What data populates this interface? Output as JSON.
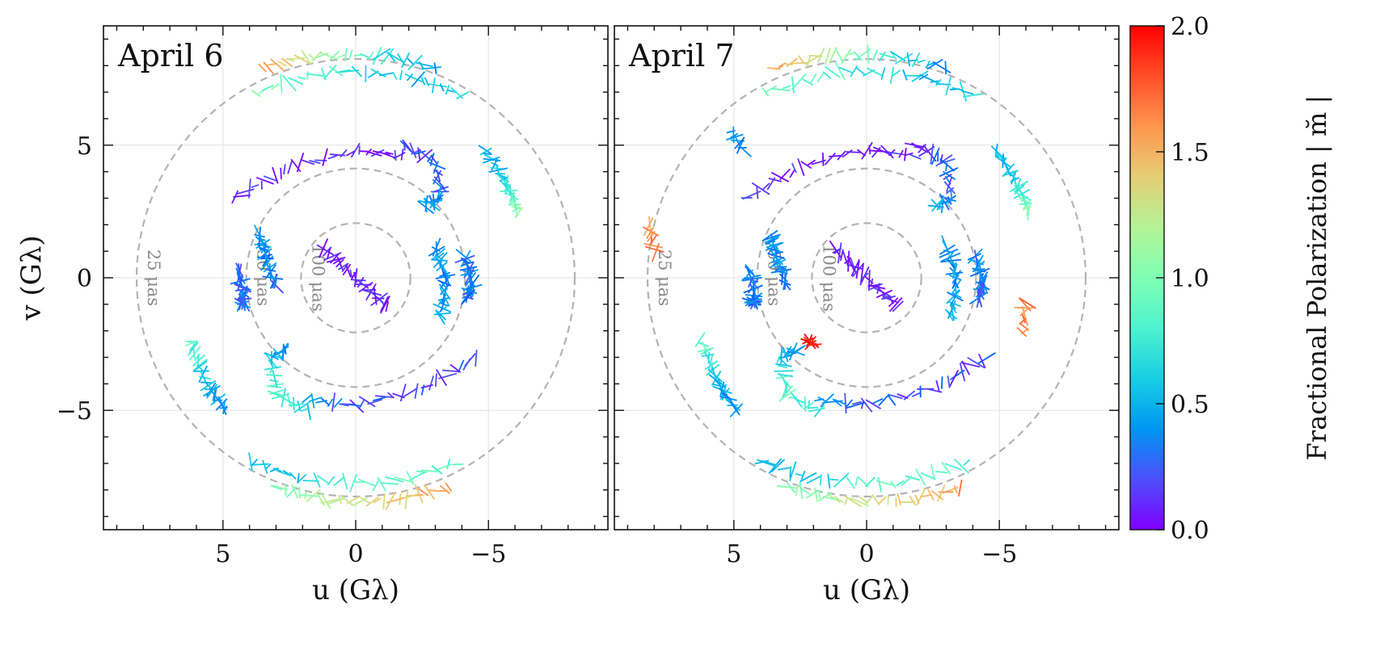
{
  "chart_data": {
    "type": "scatter",
    "description_marks": "polarization ticks along uv tracks",
    "panels": [
      {
        "title": "April 6",
        "xlabel": "u (Gλ)",
        "ylabel": "v (Gλ)",
        "xlim": [
          9.5,
          -9.5
        ],
        "ylim": [
          -9.5,
          9.5
        ],
        "xticks": [
          {
            "value": 5,
            "label": "5"
          },
          {
            "value": 0,
            "label": "0"
          },
          {
            "value": -5,
            "label": "−5"
          }
        ],
        "yticks": [
          {
            "value": 5,
            "label": "5"
          },
          {
            "value": 0,
            "label": "0"
          },
          {
            "value": -5,
            "label": "−5"
          }
        ]
      },
      {
        "title": "April 7",
        "xlabel": "u (Gλ)",
        "ylabel": "",
        "xlim": [
          9.5,
          -9.5
        ],
        "ylim": [
          -9.5,
          9.5
        ],
        "xticks": [
          {
            "value": 5,
            "label": "5"
          },
          {
            "value": 0,
            "label": "0"
          },
          {
            "value": -5,
            "label": "−5"
          }
        ],
        "yticks": []
      }
    ],
    "rings": [
      {
        "radius_glambda": 8.25,
        "label": "25 μas"
      },
      {
        "radius_glambda": 4.12,
        "label": "50 μas"
      },
      {
        "radius_glambda": 2.06,
        "label": "100 μas"
      }
    ],
    "colorbar": {
      "label": "Fractional Polarization | m̆ |",
      "range": [
        0.0,
        2.0
      ],
      "ticks": [
        "2.0",
        "1.5",
        "1.0",
        "0.5",
        "0.0"
      ],
      "colormap": "rainbow"
    },
    "tracks": [
      {
        "name": "track-center",
        "points": [
          [
            1.2,
            1.1
          ],
          [
            0.0,
            0.0
          ],
          [
            -1.2,
            -1.1
          ]
        ],
        "m": [
          0.05,
          0.08,
          0.05
        ]
      },
      {
        "name": "track-inner-right",
        "points": [
          [
            -3.2,
            -1.5
          ],
          [
            -3.4,
            0.0
          ],
          [
            -3.0,
            1.2
          ]
        ],
        "m": [
          0.5,
          0.35,
          0.4
        ]
      },
      {
        "name": "track-inner-left",
        "points": [
          [
            3.0,
            -0.3
          ],
          [
            3.4,
            0.8
          ],
          [
            3.6,
            1.6
          ]
        ],
        "m": [
          0.3,
          0.35,
          0.4
        ]
      },
      {
        "name": "track-mid-left",
        "points": [
          [
            4.4,
            0.3
          ],
          [
            4.2,
            -0.8
          ],
          [
            4.3,
            -1.0
          ]
        ],
        "m": [
          0.3,
          0.3,
          0.3
        ]
      },
      {
        "name": "track-mid-right",
        "points": [
          [
            -4.1,
            0.8
          ],
          [
            -4.4,
            -0.2
          ],
          [
            -4.2,
            -0.8
          ]
        ],
        "m": [
          0.35,
          0.3,
          0.3
        ]
      },
      {
        "name": "track-upper-arc",
        "points": [
          [
            4.5,
            3.0
          ],
          [
            2.5,
            4.2
          ],
          [
            0.0,
            4.8
          ],
          [
            -1.8,
            4.6
          ]
        ],
        "m": [
          0.15,
          0.1,
          0.08,
          0.1
        ]
      },
      {
        "name": "track-upper-hook",
        "points": [
          [
            -1.8,
            5.0
          ],
          [
            -3.0,
            4.4
          ],
          [
            -3.2,
            3.0
          ],
          [
            -2.6,
            2.7
          ]
        ],
        "m": [
          0.15,
          0.2,
          0.3,
          0.5
        ]
      },
      {
        "name": "track-lower-arc",
        "points": [
          [
            -4.5,
            -3.0
          ],
          [
            -2.5,
            -4.2
          ],
          [
            0.0,
            -4.8
          ],
          [
            1.8,
            -4.6
          ]
        ],
        "m": [
          0.2,
          0.15,
          0.2,
          0.4
        ]
      },
      {
        "name": "track-lower-hook",
        "points": [
          [
            1.8,
            -5.0
          ],
          [
            3.0,
            -4.4
          ],
          [
            3.2,
            -3.0
          ],
          [
            2.6,
            -2.7
          ]
        ],
        "m": [
          0.6,
          0.9,
          0.6,
          0.3
        ]
      },
      {
        "name": "track-far-right",
        "points": [
          [
            -4.9,
            4.8
          ],
          [
            -5.7,
            3.5
          ],
          [
            -6.1,
            2.5
          ]
        ],
        "m": [
          0.5,
          0.6,
          1.1
        ]
      },
      {
        "name": "track-far-left",
        "points": [
          [
            6.2,
            -2.4
          ],
          [
            5.6,
            -4.0
          ],
          [
            4.9,
            -5.0
          ]
        ],
        "m": [
          0.9,
          0.5,
          0.4
        ]
      },
      {
        "name": "track-top-outer",
        "points": [
          [
            3.5,
            7.9
          ],
          [
            1.5,
            8.4
          ],
          [
            -1.0,
            8.4
          ],
          [
            -3.0,
            7.9
          ]
        ],
        "m": [
          1.6,
          1.2,
          0.7,
          0.4
        ]
      },
      {
        "name": "track-top-inner",
        "points": [
          [
            3.8,
            7.0
          ],
          [
            1.0,
            7.8
          ],
          [
            -2.0,
            7.6
          ],
          [
            -4.0,
            6.9
          ]
        ],
        "m": [
          1.0,
          0.8,
          0.5,
          0.6
        ]
      },
      {
        "name": "track-bottom-outer",
        "points": [
          [
            -3.5,
            -7.9
          ],
          [
            -1.5,
            -8.4
          ],
          [
            1.0,
            -8.4
          ],
          [
            3.0,
            -7.9
          ]
        ],
        "m": [
          1.6,
          1.4,
          1.2,
          1.0
        ]
      },
      {
        "name": "track-bottom-inner",
        "points": [
          [
            -3.8,
            -7.0
          ],
          [
            -1.0,
            -7.8
          ],
          [
            2.0,
            -7.6
          ],
          [
            4.0,
            -6.9
          ]
        ],
        "m": [
          0.8,
          0.9,
          0.6,
          0.5
        ]
      }
    ],
    "extra_tracks_april7": [
      {
        "name": "track-april7-far-left-top",
        "points": [
          [
            8.2,
            2.0
          ],
          [
            8.0,
            1.0
          ]
        ],
        "m": [
          1.6,
          1.7
        ]
      },
      {
        "name": "track-april7-far-right-bottom",
        "points": [
          [
            -6.0,
            -0.9
          ],
          [
            -5.9,
            -2.1
          ]
        ],
        "m": [
          1.7,
          1.7
        ]
      },
      {
        "name": "track-april7-upper-left",
        "points": [
          [
            5.1,
            5.5
          ],
          [
            4.6,
            4.8
          ]
        ],
        "m": [
          0.35,
          0.4
        ]
      },
      {
        "name": "track-april7-flare",
        "points": [
          [
            2.2,
            -2.4
          ],
          [
            2.0,
            -2.5
          ]
        ],
        "m": [
          2.0,
          2.0
        ]
      }
    ]
  }
}
